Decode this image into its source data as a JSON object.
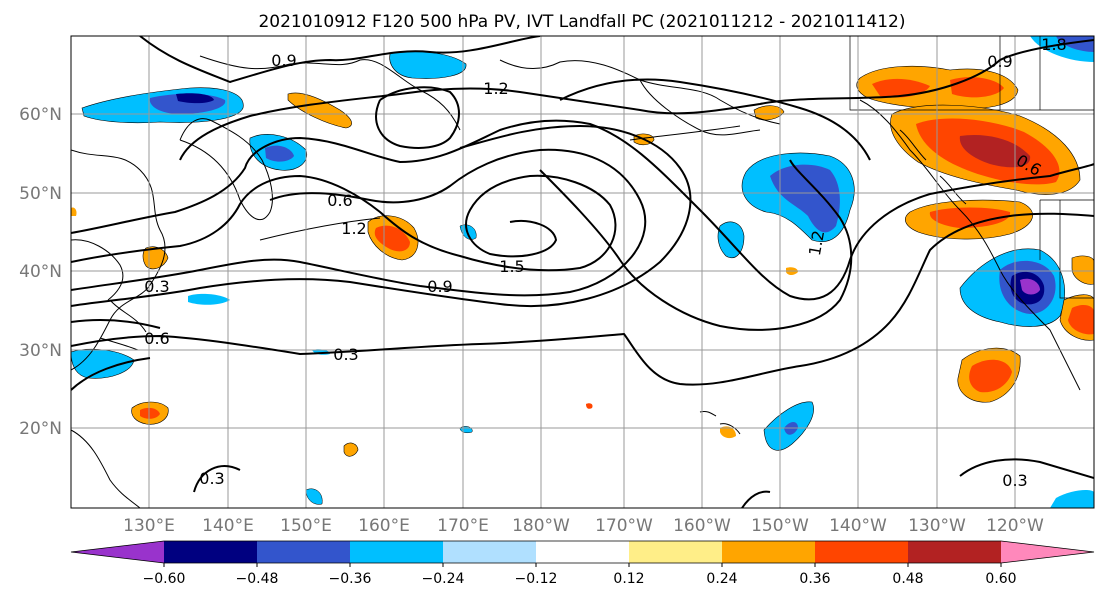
{
  "title": "2021010912 F120 500 hPa PV, IVT Landfall PC (2021011212 - 2021011412)",
  "lat_labels": [
    "60°N",
    "50°N",
    "40°N",
    "30°N",
    "20°N"
  ],
  "lon_labels": [
    "130°E",
    "140°E",
    "150°E",
    "160°E",
    "170°E",
    "180°W",
    "170°W",
    "160°W",
    "150°W",
    "140°W",
    "130°W",
    "120°W"
  ],
  "colorbar": {
    "colors": [
      "#9933cc",
      "#000080",
      "#3355cc",
      "#00bfff",
      "#b0e0ff",
      "#ffffff",
      "#ffee88",
      "#ffa500",
      "#ff4500",
      "#b22222",
      "#ff88bb"
    ],
    "ticks": [
      "−0.60",
      "−0.48",
      "−0.36",
      "−0.24",
      "−0.12",
      "0.12",
      "0.24",
      "0.36",
      "0.48",
      "0.60"
    ]
  },
  "contour_labels": [
    "0.9",
    "1.2",
    "0.6",
    "1.2",
    "1.5",
    "0.9",
    "0.3",
    "0.6",
    "0.3",
    "0.3",
    "1.2",
    "0.6",
    "0.9",
    "0.3",
    "1.8"
  ]
}
